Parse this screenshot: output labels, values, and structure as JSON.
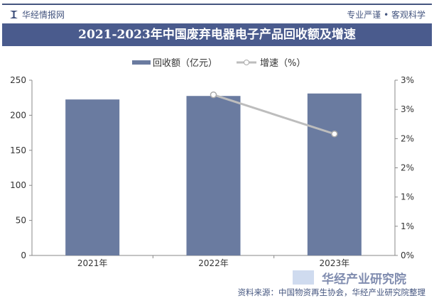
{
  "header": {
    "brand": "华经情报网",
    "slogan": "专业严谨 • 客观科学",
    "title": "2021-2023年中国废弃电器电子产品回收额及增速"
  },
  "colors": {
    "bar": "#6a7ba0",
    "line": "#bdbdbd",
    "title_bg": "#4a5b8d"
  },
  "chart_data": {
    "type": "bar+line",
    "categories": [
      "2021年",
      "2022年",
      "2023年"
    ],
    "series": [
      {
        "name": "回收额（亿元）",
        "type": "bar",
        "axis": "left",
        "values": [
          222.5,
          227.5,
          231
        ]
      },
      {
        "name": "增速（%）",
        "type": "line",
        "axis": "right",
        "values": [
          null,
          2.75,
          2.08
        ]
      }
    ],
    "left_axis": {
      "ylim": [
        0,
        250
      ],
      "ticks": [
        "0",
        "50",
        "100",
        "150",
        "200",
        "250"
      ]
    },
    "right_axis": {
      "ylim": [
        0,
        3
      ],
      "ticks": [
        "0%",
        "1%",
        "1%",
        "2%",
        "2%",
        "3%",
        "3%"
      ]
    },
    "legend": "top-center",
    "grid": false
  },
  "watermark": "华经产业研究院",
  "source": "资料来源：中国物资再生协会，华经产业研究院整理"
}
